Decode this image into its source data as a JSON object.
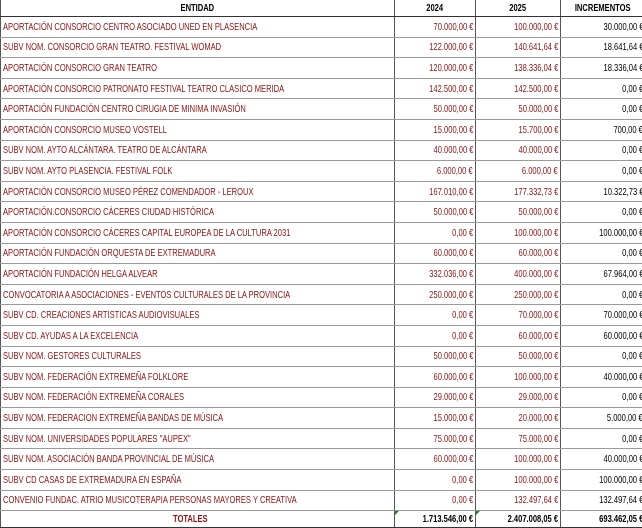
{
  "headers": [
    "ENTIDAD",
    "2024",
    "2025",
    "INCREMENTOS"
  ],
  "colors": {
    "entity_text": "#8b1414",
    "increment_text": "#000000"
  },
  "rows": [
    [
      "APORTACIÓN CONSORCIO CENTRO ASOCIADO UNED EN PLASENCIA",
      "70.000,00 €",
      "100.000,00 €",
      "30.000,00 €"
    ],
    [
      "SUBV NOM. CONSORCIO GRAN TEATRO. FESTIVAL WOMAD",
      "122.000,00 €",
      "140.641,64 €",
      "18.641,64 €"
    ],
    [
      "APORTACIÓN CONSORCIO GRAN TEATRO",
      "120.000,00 €",
      "138.336,04 €",
      "18.336,04 €"
    ],
    [
      "APORTACIÓN CONSORCIO PATRONATO FESTIVAL TEATRO CLASICO MERIDA",
      "142.500,00 €",
      "142.500,00 €",
      "0,00 €"
    ],
    [
      "APORTACIÓN FUNDACIÓN CENTRO CIRUGIA DE MINIMA INVASIÓN",
      "50.000,00 €",
      "50.000,00 €",
      "0,00 €"
    ],
    [
      "APORTACIÓN CONSORCIO MUSEO VOSTELL",
      "15.000,00 €",
      "15.700,00 €",
      "700,00 €"
    ],
    [
      "SUBV NOM. AYTO ALCÁNTARA. TEATRO DE ALCÁNTARA",
      "40.000,00 €",
      "40.000,00 €",
      "0,00 €"
    ],
    [
      "SUBV NOM. AYTO PLASENCIA. FESTIVAL FOLK",
      "6.000,00 €",
      "6.000,00 €",
      "0,00 €"
    ],
    [
      "APORTACIÓN CONSORCIO MUSEO PÉREZ COMENDADOR - LEROUX",
      "167.010,00 €",
      "177.332,73 €",
      "10.322,73 €"
    ],
    [
      "APORTACIÓN.CONSORCIO CÁCERES CIUDAD HISTÓRICA",
      "50.000,00 €",
      "50.000,00 €",
      "0,00 €"
    ],
    [
      "APORTACIÓN CONSORCIO CÁCERES CAPITAL EUROPEA DE LA CULTURA 2031",
      "0,00 €",
      "100.000,00 €",
      "100.000,00 €"
    ],
    [
      "APORTACIÓN FUNDACIÓN ORQUESTA DE EXTREMADURA",
      "60.000,00 €",
      "60.000,00 €",
      "0,00 €"
    ],
    [
      "APORTACIÓN FUNDACIÓN HELGA ALVEAR",
      "332.036,00 €",
      "400.000,00 €",
      "67.964,00 €"
    ],
    [
      "CONVOCATORIA A ASOCIACIONES - EVENTOS CULTURALES DE LA PROVINCIA",
      "250.000,00 €",
      "250.000,00 €",
      "0,00 €"
    ],
    [
      "SUBV CD. CREACIONES ARTISTICAS AUDIOVISUALES",
      "0,00 €",
      "70.000,00 €",
      "70.000,00 €"
    ],
    [
      "SUBV CD. AYUDAS A LA EXCELENCIA",
      "0,00 €",
      "60.000,00 €",
      "60.000,00 €"
    ],
    [
      "SUBV NOM. GESTORES CULTURALES",
      "50.000,00 €",
      "50.000,00 €",
      "0,00 €"
    ],
    [
      "SUBV NOM. FEDERACIÓN EXTREMEÑA FOLKLORE",
      "60.000,00 €",
      "100.000,00 €",
      "40.000,00 €"
    ],
    [
      "SUBV NOM. FEDERACIÓN EXTREMEÑA CORALES",
      "29.000,00 €",
      "29.000,00 €",
      "0,00 €"
    ],
    [
      "SUBV NOM. FEDERACION EXTREMEÑA BANDAS DE MÚSICA",
      "15.000,00 €",
      "20.000,00 €",
      "5.000,00 €"
    ],
    [
      "SUBV NOM. UNIVERSIDADES POPULARES \"AUPEX\"",
      "75.000,00 €",
      "75.000,00 €",
      "0,00 €"
    ],
    [
      "SUBV NOM. ASOCIACIÓN BANDA PROVINCIAL DE MÚSICA",
      "60.000,00 €",
      "100.000,00 €",
      "40.000,00 €"
    ],
    [
      "SUBV CD CASAS DE EXTREMADURA EN ESPAÑA",
      "0,00 €",
      "100.000,00 €",
      "100.000,00 €"
    ],
    [
      "CONVENIO FUNDAC. ATRIO MUSICOTERAPIA PERSONAS MAYORES Y CREATIVA",
      "0,00 €",
      "132.497,64 €",
      "132.497,64 €"
    ]
  ],
  "totals": [
    "TOTALES",
    "1.713.546,00 €",
    "2.407.008,05 €",
    "693.462,05 €"
  ]
}
